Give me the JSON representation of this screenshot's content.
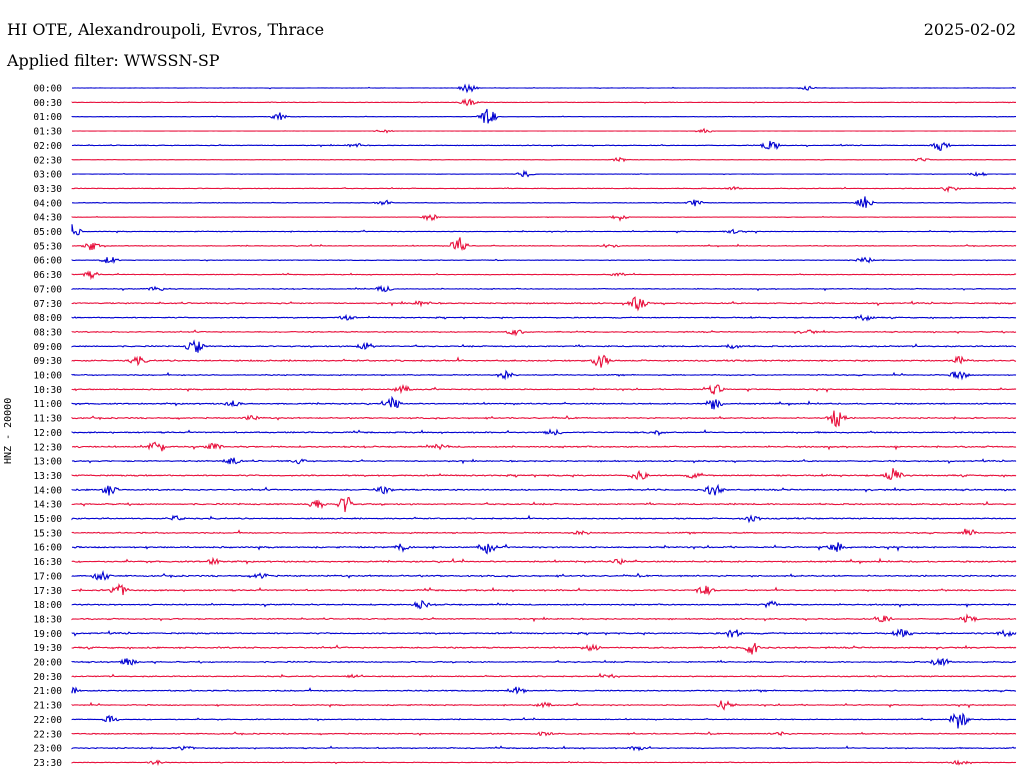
{
  "header": {
    "station": "HI OTE, Alexandroupoli, Evros, Thrace",
    "date": "2025-02-02",
    "filter": "Applied filter: WWSSN-SP"
  },
  "colors": {
    "even_row": "#0000d0",
    "odd_row": "#e8103c"
  },
  "chart_data": {
    "type": "line",
    "title": "HI OTE, Alexandroupoli, Evros, Thrace",
    "ylabel": "HNZ - 20000",
    "rows": [
      "00:00",
      "00:30",
      "01:00",
      "01:30",
      "02:00",
      "02:30",
      "03:00",
      "03:30",
      "04:00",
      "04:30",
      "05:00",
      "05:30",
      "06:00",
      "06:30",
      "07:00",
      "07:30",
      "08:00",
      "08:30",
      "09:00",
      "09:30",
      "10:00",
      "10:30",
      "11:00",
      "11:30",
      "12:00",
      "12:30",
      "13:00",
      "13:30",
      "14:00",
      "14:30",
      "15:00",
      "15:30",
      "16:00",
      "16:30",
      "17:00",
      "17:30",
      "18:00",
      "18:30",
      "19:00",
      "19:30",
      "20:00",
      "20:30",
      "21:00",
      "21:30",
      "22:00",
      "22:30",
      "23:00",
      "23:30"
    ],
    "row_noise": [
      0.1,
      0.15,
      0.1,
      0.05,
      0.2,
      0.1,
      0.1,
      0.2,
      0.15,
      0.1,
      0.2,
      0.2,
      0.15,
      0.2,
      0.25,
      0.35,
      0.3,
      0.3,
      0.35,
      0.4,
      0.3,
      0.3,
      0.35,
      0.35,
      0.35,
      0.4,
      0.35,
      0.4,
      0.4,
      0.4,
      0.35,
      0.35,
      0.4,
      0.4,
      0.4,
      0.4,
      0.35,
      0.35,
      0.4,
      0.4,
      0.35,
      0.3,
      0.35,
      0.3,
      0.25,
      0.3,
      0.3,
      0.2
    ],
    "events": [
      [
        [
          0.42,
          1.2
        ],
        [
          0.78,
          0.6
        ]
      ],
      [
        [
          0.42,
          0.8
        ]
      ],
      [
        [
          0.44,
          2.5
        ],
        [
          0.22,
          0.9
        ]
      ],
      [
        [
          0.33,
          0.5
        ],
        [
          0.67,
          0.5
        ]
      ],
      [
        [
          0.74,
          1.6
        ],
        [
          0.92,
          1.2
        ],
        [
          0.3,
          0.5
        ]
      ],
      [
        [
          0.58,
          0.6
        ],
        [
          0.9,
          0.5
        ]
      ],
      [
        [
          0.48,
          0.8
        ],
        [
          0.96,
          0.8
        ]
      ],
      [
        [
          0.93,
          0.9
        ],
        [
          0.7,
          0.4
        ]
      ],
      [
        [
          0.84,
          1.8
        ],
        [
          0.66,
          0.8
        ],
        [
          0.33,
          0.5
        ]
      ],
      [
        [
          0.38,
          0.8
        ],
        [
          0.58,
          0.8
        ]
      ],
      [
        [
          0.0,
          1.7
        ],
        [
          0.7,
          0.5
        ]
      ],
      [
        [
          0.41,
          2.2
        ],
        [
          0.02,
          1.2
        ],
        [
          0.57,
          0.6
        ]
      ],
      [
        [
          0.04,
          1.0
        ],
        [
          0.84,
          0.8
        ]
      ],
      [
        [
          0.02,
          0.8
        ],
        [
          0.58,
          0.5
        ]
      ],
      [
        [
          0.09,
          0.7
        ],
        [
          0.33,
          0.7
        ]
      ],
      [
        [
          0.6,
          2.0
        ],
        [
          0.37,
          0.6
        ]
      ],
      [
        [
          0.29,
          0.6
        ],
        [
          0.84,
          0.8
        ]
      ],
      [
        [
          0.47,
          0.7
        ],
        [
          0.78,
          0.5
        ]
      ],
      [
        [
          0.13,
          2.0
        ],
        [
          0.31,
          1.0
        ],
        [
          0.7,
          0.6
        ]
      ],
      [
        [
          0.56,
          1.8
        ],
        [
          0.94,
          1.0
        ],
        [
          0.07,
          0.9
        ]
      ],
      [
        [
          0.46,
          0.9
        ],
        [
          0.94,
          1.2
        ]
      ],
      [
        [
          0.68,
          1.5
        ],
        [
          0.35,
          0.9
        ]
      ],
      [
        [
          0.34,
          1.5
        ],
        [
          0.68,
          1.3
        ],
        [
          0.17,
          0.7
        ]
      ],
      [
        [
          0.81,
          2.4
        ],
        [
          0.19,
          0.6
        ]
      ],
      [
        [
          0.51,
          0.7
        ],
        [
          0.62,
          0.6
        ]
      ],
      [
        [
          0.09,
          1.6
        ],
        [
          0.15,
          0.8
        ],
        [
          0.39,
          0.6
        ]
      ],
      [
        [
          0.17,
          1.0
        ],
        [
          0.24,
          0.5
        ]
      ],
      [
        [
          0.87,
          2.1
        ],
        [
          0.6,
          1.3
        ],
        [
          0.66,
          0.7
        ]
      ],
      [
        [
          0.04,
          1.3
        ],
        [
          0.68,
          1.5
        ],
        [
          0.33,
          0.8
        ]
      ],
      [
        [
          0.29,
          2.1
        ],
        [
          0.26,
          1.3
        ]
      ],
      [
        [
          0.72,
          1.0
        ],
        [
          0.11,
          0.6
        ]
      ],
      [
        [
          0.95,
          0.6
        ],
        [
          0.54,
          0.5
        ]
      ],
      [
        [
          0.44,
          1.4
        ],
        [
          0.81,
          1.3
        ],
        [
          0.35,
          0.9
        ]
      ],
      [
        [
          0.15,
          0.7
        ],
        [
          0.58,
          0.6
        ]
      ],
      [
        [
          0.03,
          1.5
        ],
        [
          0.2,
          0.6
        ]
      ],
      [
        [
          0.05,
          1.6
        ],
        [
          0.67,
          1.2
        ]
      ],
      [
        [
          0.37,
          0.9
        ],
        [
          0.74,
          0.9
        ]
      ],
      [
        [
          0.95,
          0.9
        ],
        [
          0.86,
          0.8
        ]
      ],
      [
        [
          0.7,
          1.2
        ],
        [
          0.88,
          1.0
        ],
        [
          0.99,
          0.8
        ]
      ],
      [
        [
          0.72,
          1.6
        ],
        [
          0.55,
          0.8
        ]
      ],
      [
        [
          0.92,
          1.3
        ],
        [
          0.06,
          1.0
        ]
      ],
      [
        [
          0.57,
          0.5
        ],
        [
          0.3,
          0.5
        ]
      ],
      [
        [
          0.0,
          1.0
        ],
        [
          0.47,
          0.9
        ]
      ],
      [
        [
          0.69,
          1.3
        ],
        [
          0.5,
          0.6
        ]
      ],
      [
        [
          0.94,
          2.4
        ],
        [
          0.04,
          1.0
        ]
      ],
      [
        [
          0.75,
          0.5
        ],
        [
          0.5,
          0.5
        ]
      ],
      [
        [
          0.12,
          0.6
        ],
        [
          0.6,
          0.6
        ]
      ],
      [
        [
          0.09,
          0.5
        ],
        [
          0.94,
          0.5
        ]
      ]
    ]
  }
}
